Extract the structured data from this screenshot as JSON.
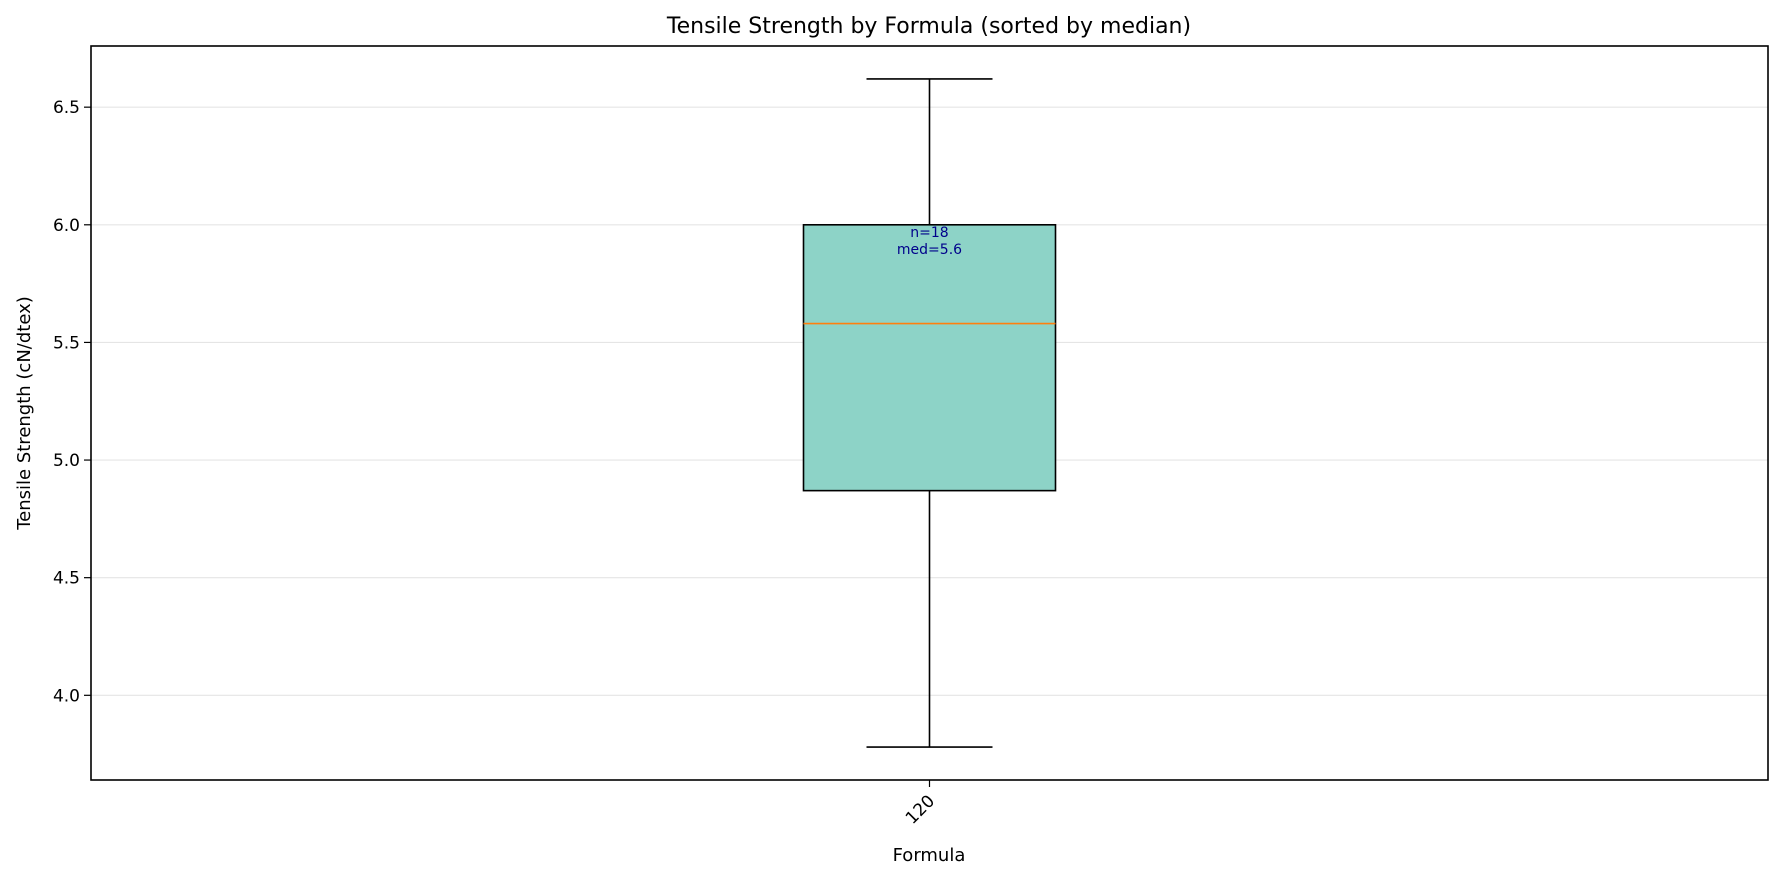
{
  "chart_data": {
    "type": "box",
    "title": "Tensile Strength by Formula (sorted by median)",
    "xlabel": "Formula",
    "ylabel": "Tensile Strength (cN/dtex)",
    "ylim": [
      3.64,
      6.76
    ],
    "yticks": [
      4.0,
      4.5,
      5.0,
      5.5,
      6.0,
      6.5
    ],
    "ytick_labels": [
      "4.0",
      "4.5",
      "5.0",
      "5.5",
      "6.0",
      "6.5"
    ],
    "grid": "y",
    "categories": [
      "120"
    ],
    "boxes": [
      {
        "category": "120",
        "whisker_low": 3.78,
        "q1": 4.87,
        "median": 5.58,
        "q3": 6.0,
        "whisker_high": 6.62,
        "annotation": [
          "n=18",
          "med=5.6"
        ]
      }
    ],
    "colors": {
      "box_fill": "#8dd3c7",
      "median_line": "#ff7f0e",
      "annotation_text": "#00008b",
      "grid": "#e5e5e5"
    }
  }
}
